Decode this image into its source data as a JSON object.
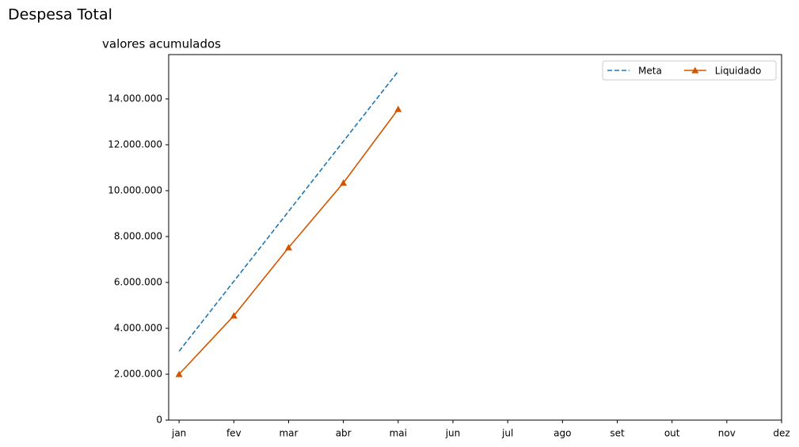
{
  "chart_data": {
    "type": "line",
    "title": "Despesa Total",
    "subtitle": "valores acumulados",
    "categories": [
      "jan",
      "fev",
      "mar",
      "abr",
      "mai",
      "jun",
      "jul",
      "ago",
      "set",
      "out",
      "nov",
      "dez"
    ],
    "series": [
      {
        "name": "Meta",
        "color": "#1f77b4",
        "linestyle": "dashed",
        "marker": null,
        "values": [
          3000000,
          6050000,
          9100000,
          12150000,
          15200000,
          null,
          null,
          null,
          null,
          null,
          null,
          null
        ]
      },
      {
        "name": "Liquidado",
        "color": "#d45500",
        "linestyle": "solid",
        "marker": "triangle",
        "values": [
          2000000,
          4550000,
          7520000,
          10340000,
          13550000,
          null,
          null,
          null,
          null,
          null,
          null,
          null
        ]
      }
    ],
    "ylim": [
      0,
      15930000
    ],
    "yticks": [
      0,
      {
        "value": 2000000,
        "label": "2.000.000"
      },
      {
        "value": 4000000,
        "label": "4.000.000"
      },
      {
        "value": 6000000,
        "label": "6.000.000"
      },
      {
        "value": 8000000,
        "label": "8.000.000"
      },
      {
        "value": 10000000,
        "label": "10.000.000"
      },
      {
        "value": 12000000,
        "label": "12.000.000"
      },
      {
        "value": 14000000,
        "label": "14.000.000"
      }
    ],
    "legend": "upper right",
    "grid": false
  }
}
